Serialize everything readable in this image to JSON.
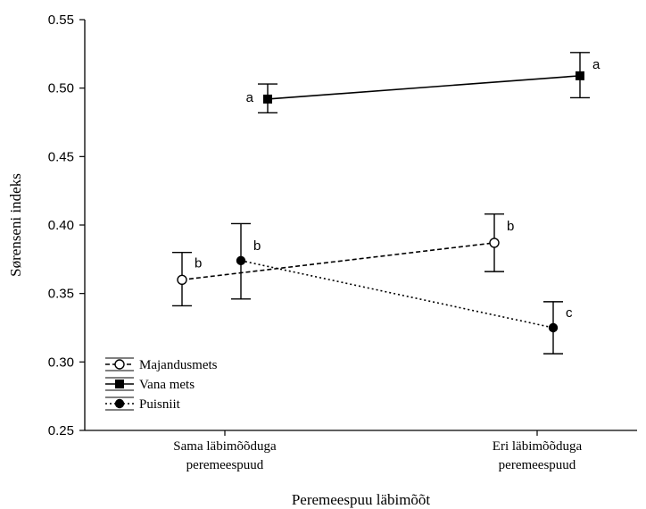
{
  "chart_data": {
    "type": "line",
    "xlabel": "Peremeespuu läbimõõt",
    "ylabel": "Sørenseni indeks",
    "ylim": [
      0.25,
      0.55
    ],
    "yticks": [
      "0.25",
      "0.30",
      "0.35",
      "0.40",
      "0.45",
      "0.50",
      "0.55"
    ],
    "categories": [
      [
        "Sama läbimõõduga",
        "peremeespuud"
      ],
      [
        "Eri läbimõõduga",
        "peremeespuud"
      ]
    ],
    "grid": false,
    "legend_position": "bottom-left",
    "series": [
      {
        "name": "Majandusmets",
        "marker": "open-circle",
        "line": "dashed",
        "points": [
          {
            "mean": 0.36,
            "low": 0.341,
            "high": 0.38,
            "label": "b"
          },
          {
            "mean": 0.387,
            "low": 0.366,
            "high": 0.408,
            "label": "b"
          }
        ]
      },
      {
        "name": "Vana mets",
        "marker": "filled-square",
        "line": "solid",
        "points": [
          {
            "mean": 0.492,
            "low": 0.482,
            "high": 0.503,
            "label": "a"
          },
          {
            "mean": 0.509,
            "low": 0.493,
            "high": 0.526,
            "label": "a"
          }
        ]
      },
      {
        "name": "Puisniit",
        "marker": "filled-circle",
        "line": "dotted",
        "points": [
          {
            "mean": 0.374,
            "low": 0.346,
            "high": 0.401,
            "label": "b"
          },
          {
            "mean": 0.325,
            "low": 0.306,
            "high": 0.344,
            "label": "c"
          }
        ]
      }
    ]
  }
}
